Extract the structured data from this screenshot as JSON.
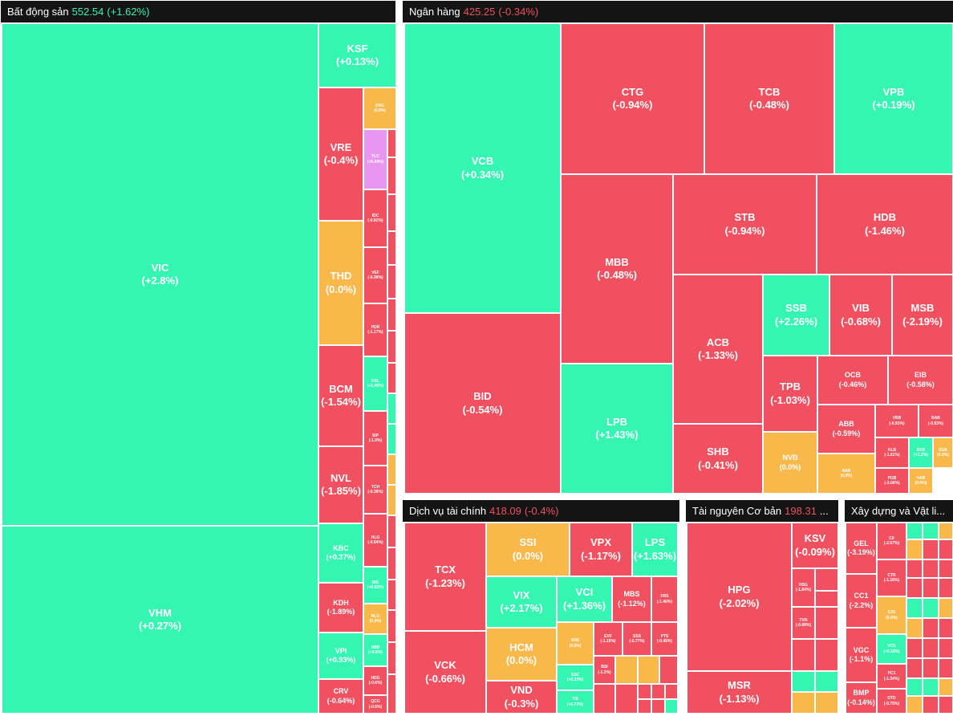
{
  "colors": {
    "up": "#35f5b3",
    "down": "#f0505f",
    "flat": "#f9b84a",
    "ceiling": "#e996f1",
    "header_bg": "#141414"
  },
  "chart_data": [
    {
      "type": "treemap",
      "title": "Bất động sản",
      "index_value": "552.54",
      "index_change": "(+1.62%)",
      "index_status": "up",
      "items": [
        {
          "ticker": "VIC",
          "change": "(+2.8%)",
          "status": "up"
        },
        {
          "ticker": "VHM",
          "change": "(+0.27%)",
          "status": "up"
        },
        {
          "ticker": "KSF",
          "change": "(+0.13%)",
          "status": "up"
        },
        {
          "ticker": "VRE",
          "change": "(-0.4%)",
          "status": "down"
        },
        {
          "ticker": "DXG",
          "change": "(0.0%)",
          "status": "flat"
        },
        {
          "ticker": "TLC",
          "change": "(+6.89%)",
          "status": "ceiling"
        },
        {
          "ticker": "THD",
          "change": "(0.0%)",
          "status": "flat"
        },
        {
          "ticker": "IDC",
          "change": "(-0.81%)",
          "status": "down"
        },
        {
          "ticker": "VEF",
          "change": "(-0.38%)",
          "status": "down"
        },
        {
          "ticker": "PDR",
          "change": "(-1.17%)",
          "status": "down"
        },
        {
          "ticker": "BCM",
          "change": "(-1.54%)",
          "status": "down"
        },
        {
          "ticker": "DXL",
          "change": "(+1.45%)",
          "status": "up"
        },
        {
          "ticker": "SIP",
          "change": "(-1.0%)",
          "status": "down"
        },
        {
          "ticker": "NVL",
          "change": "(-1.85%)",
          "status": "down"
        },
        {
          "ticker": "TCH",
          "change": "(-0.38%)",
          "status": "down"
        },
        {
          "ticker": "KBC",
          "change": "(+0.37%)",
          "status": "up"
        },
        {
          "ticker": "HLG",
          "change": "(-0.64%)",
          "status": "down"
        },
        {
          "ticker": "DIG",
          "change": "(+0.65%)",
          "status": "up"
        },
        {
          "ticker": "KDH",
          "change": "(-1.89%)",
          "status": "down"
        },
        {
          "ticker": "NLG",
          "change": "(0.0%)",
          "status": "flat"
        },
        {
          "ticker": "VPI",
          "change": "(+0.93%)",
          "status": "up"
        },
        {
          "ticker": "NBB",
          "change": "(+0.6%)",
          "status": "up"
        },
        {
          "ticker": "CRV",
          "change": "(-0.64%)",
          "status": "down"
        },
        {
          "ticker": "HDG",
          "change": "(-0.6%)",
          "status": "down"
        },
        {
          "ticker": "QCG",
          "change": "(-0.6%)",
          "status": "down"
        }
      ]
    },
    {
      "type": "treemap",
      "title": "Ngân hàng",
      "index_value": "425.25",
      "index_change": "(-0.34%)",
      "index_status": "down",
      "items": [
        {
          "ticker": "VCB",
          "change": "(+0.34%)",
          "status": "up"
        },
        {
          "ticker": "BID",
          "change": "(-0.54%)",
          "status": "down"
        },
        {
          "ticker": "CTG",
          "change": "(-0.94%)",
          "status": "down"
        },
        {
          "ticker": "TCB",
          "change": "(-0.48%)",
          "status": "down"
        },
        {
          "ticker": "VPB",
          "change": "(+0.19%)",
          "status": "up"
        },
        {
          "ticker": "MBB",
          "change": "(-0.48%)",
          "status": "down"
        },
        {
          "ticker": "STB",
          "change": "(-0.94%)",
          "status": "down"
        },
        {
          "ticker": "HDB",
          "change": "(-1.46%)",
          "status": "down"
        },
        {
          "ticker": "LPB",
          "change": "(+1.43%)",
          "status": "up"
        },
        {
          "ticker": "ACB",
          "change": "(-1.33%)",
          "status": "down"
        },
        {
          "ticker": "SSB",
          "change": "(+2.26%)",
          "status": "up"
        },
        {
          "ticker": "VIB",
          "change": "(-0.68%)",
          "status": "down"
        },
        {
          "ticker": "MSB",
          "change": "(-2.19%)",
          "status": "down"
        },
        {
          "ticker": "TPB",
          "change": "(-1.03%)",
          "status": "down"
        },
        {
          "ticker": "OCB",
          "change": "(-0.46%)",
          "status": "down"
        },
        {
          "ticker": "EIB",
          "change": "(-0.58%)",
          "status": "down"
        },
        {
          "ticker": "SHB",
          "change": "(-0.41%)",
          "status": "down"
        },
        {
          "ticker": "NVB",
          "change": "(0.0%)",
          "status": "flat"
        },
        {
          "ticker": "ABB",
          "change": "(-0.59%)",
          "status": "down"
        },
        {
          "ticker": "VBB",
          "change": "(-0.93%)",
          "status": "down"
        },
        {
          "ticker": "BAB",
          "change": "(-0.93%)",
          "status": "down"
        },
        {
          "ticker": "NAB",
          "change": "(0.0%)",
          "status": "flat"
        },
        {
          "ticker": "KLB",
          "change": "(-1.61%)",
          "status": "down"
        },
        {
          "ticker": "BVB",
          "change": "(+1.3%)",
          "status": "up"
        },
        {
          "ticker": "SGB",
          "change": "(0.0%)",
          "status": "flat"
        },
        {
          "ticker": "PGB",
          "change": "(-3.06%)",
          "status": "down"
        },
        {
          "ticker": "VAB",
          "change": "(0.0%)",
          "status": "flat"
        }
      ]
    },
    {
      "type": "treemap",
      "title": "Dịch vụ tài chính",
      "index_value": "418.09",
      "index_change": "(-0.4%)",
      "index_status": "down",
      "items": [
        {
          "ticker": "TCX",
          "change": "(-1.23%)",
          "status": "down"
        },
        {
          "ticker": "VCK",
          "change": "(-0.66%)",
          "status": "down"
        },
        {
          "ticker": "SSI",
          "change": "(0.0%)",
          "status": "flat"
        },
        {
          "ticker": "VPX",
          "change": "(-1.17%)",
          "status": "down"
        },
        {
          "ticker": "LPS",
          "change": "(+1.63%)",
          "status": "up"
        },
        {
          "ticker": "VIX",
          "change": "(+2.17%)",
          "status": "up"
        },
        {
          "ticker": "VCI",
          "change": "(+1.36%)",
          "status": "up"
        },
        {
          "ticker": "MBS",
          "change": "(-1.12%)",
          "status": "down"
        },
        {
          "ticker": "FRS",
          "change": "(-1.46%)",
          "status": "down"
        },
        {
          "ticker": "HCM",
          "change": "(0.0%)",
          "status": "flat"
        },
        {
          "ticker": "SHS",
          "change": "(0.0%)",
          "status": "flat"
        },
        {
          "ticker": "EVF",
          "change": "(-1.19%)",
          "status": "down"
        },
        {
          "ticker": "SSS",
          "change": "(-0.77%)",
          "status": "down"
        },
        {
          "ticker": "PTS",
          "change": "(-0.45%)",
          "status": "down"
        },
        {
          "ticker": "VND",
          "change": "(-0.3%)",
          "status": "down"
        },
        {
          "ticker": "SSC",
          "change": "(+0.33%)",
          "status": "up"
        },
        {
          "ticker": "TIS",
          "change": "(+0.72%)",
          "status": "up"
        },
        {
          "ticker": "BSI",
          "change": "(-1.2%)",
          "status": "down"
        }
      ]
    },
    {
      "type": "treemap",
      "title": "Tài nguyên Cơ bản",
      "index_value": "198.31",
      "index_change": "...",
      "index_status": "down",
      "items": [
        {
          "ticker": "HPG",
          "change": "(-2.02%)",
          "status": "down"
        },
        {
          "ticker": "MSR",
          "change": "(-1.13%)",
          "status": "down"
        },
        {
          "ticker": "KSV",
          "change": "(-0.09%)",
          "status": "down"
        },
        {
          "ticker": "HSG",
          "change": "(-1.84%)",
          "status": "down"
        },
        {
          "ticker": "TVN",
          "change": "(-0.88%)",
          "status": "down"
        }
      ]
    },
    {
      "type": "treemap",
      "title": "Xây dựng và Vật li...",
      "items": [
        {
          "ticker": "GEL",
          "change": "(-3.19%)",
          "status": "down"
        },
        {
          "ticker": "CC1",
          "change": "(-2.2%)",
          "status": "down"
        },
        {
          "ticker": "VGC",
          "change": "(-1.1%)",
          "status": "down"
        },
        {
          "ticker": "BMP",
          "change": "(-0.14%)",
          "status": "down"
        },
        {
          "ticker": "CII",
          "change": "(-2.67%)",
          "status": "down"
        },
        {
          "ticker": "CTR",
          "change": "(-1.18%)",
          "status": "down"
        },
        {
          "ticker": "SJG",
          "change": "(0.0%)",
          "status": "flat"
        },
        {
          "ticker": "VCG",
          "change": "(+0.33%)",
          "status": "up"
        },
        {
          "ticker": "PC1",
          "change": "(-1.34%)",
          "status": "down"
        },
        {
          "ticker": "DTD",
          "change": "(-0.75%)",
          "status": "down"
        }
      ]
    }
  ]
}
